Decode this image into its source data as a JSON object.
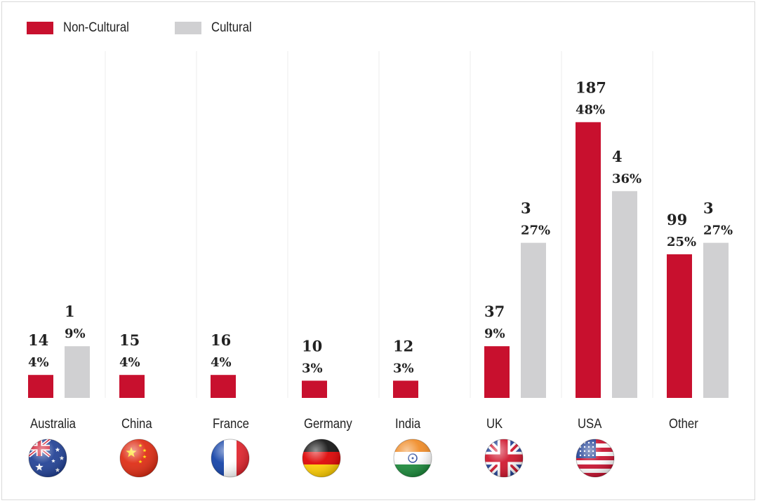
{
  "chart_data": {
    "type": "bar",
    "title": "",
    "xlabel": "",
    "ylabel": "",
    "grid": false,
    "legend_position": "top-left",
    "categories": [
      "Australia",
      "China",
      "France",
      "Germany",
      "India",
      "UK",
      "USA",
      "Other"
    ],
    "icons": [
      "australia-flag-icon",
      "china-flag-icon",
      "france-flag-icon",
      "germany-flag-icon",
      "india-flag-icon",
      "uk-flag-icon",
      "usa-flag-icon",
      null
    ],
    "series": [
      {
        "name": "Non-Cultural",
        "color": "#c8102e",
        "values": [
          14,
          15,
          16,
          10,
          12,
          37,
          187,
          99
        ],
        "percents": [
          "4%",
          "4%",
          "4%",
          "3%",
          "3%",
          "9%",
          "48%",
          "25%"
        ],
        "bar_heights": [
          4,
          4,
          4,
          3,
          3,
          9,
          48,
          25
        ]
      },
      {
        "name": "Cultural",
        "color": "#d0d0d2",
        "values": [
          1,
          null,
          null,
          null,
          null,
          3,
          4,
          3
        ],
        "percents": [
          "9%",
          null,
          null,
          null,
          null,
          "27%",
          "36%",
          "27%"
        ],
        "bar_heights": [
          9,
          null,
          null,
          null,
          null,
          27,
          36,
          27
        ]
      }
    ]
  },
  "legend": {
    "items": [
      {
        "label": "Non-Cultural",
        "color": "#c8102e"
      },
      {
        "label": "Cultural",
        "color": "#d0d0d2"
      }
    ]
  }
}
